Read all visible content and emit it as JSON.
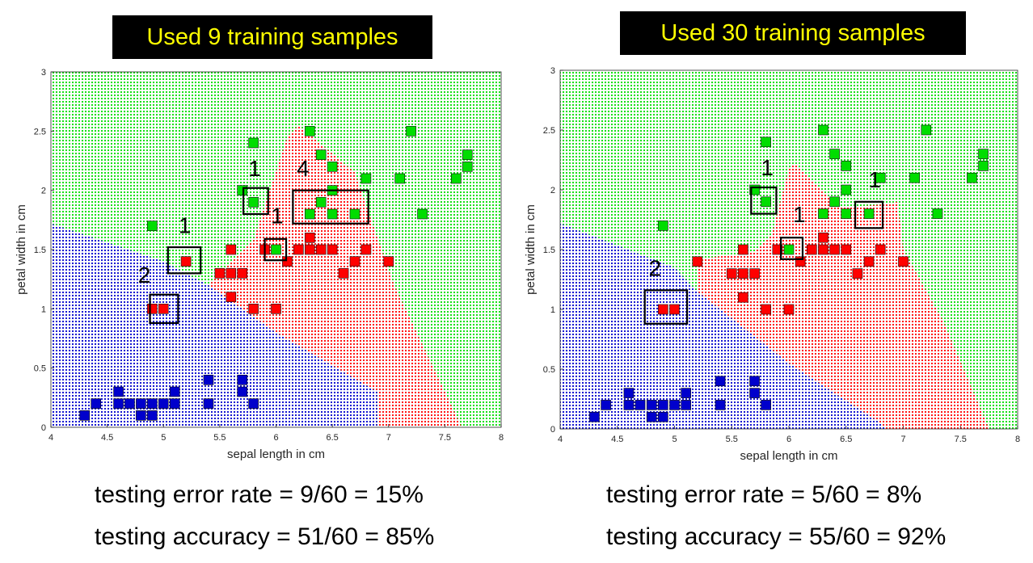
{
  "colors": {
    "setosa": "#0000cc",
    "versicolor": "#ff0000",
    "virginica": "#00dd00",
    "title_bg": "#000000",
    "title_text": "#ffff00"
  },
  "chart_data": [
    {
      "type": "scatter",
      "title": "Used 9 training samples",
      "xlabel": "sepal length in cm",
      "ylabel": "petal width in cm",
      "xlim": [
        4,
        8
      ],
      "ylim": [
        0,
        3
      ],
      "xticks": [
        "4",
        "4.5",
        "5",
        "5.5",
        "6",
        "6.5",
        "7",
        "7.5",
        "8"
      ],
      "yticks": [
        "0",
        "0.5",
        "1",
        "1.5",
        "2",
        "2.5",
        "3"
      ],
      "background": "dotted decision regions",
      "regions": {
        "setosa": [
          [
            4,
            1.72
          ],
          [
            5.0,
            1.4
          ],
          [
            5.4,
            1.2
          ],
          [
            6.0,
            0.8
          ],
          [
            6.9,
            0.3
          ],
          [
            6.9,
            0
          ],
          [
            4,
            0
          ]
        ],
        "versicolor": [
          [
            5.4,
            1.2
          ],
          [
            5.8,
            1.58
          ],
          [
            6.1,
            2.45
          ],
          [
            6.2,
            2.55
          ],
          [
            6.7,
            2.15
          ],
          [
            6.9,
            1.6
          ],
          [
            7.05,
            1.2
          ],
          [
            7.3,
            0.7
          ],
          [
            7.55,
            0.2
          ],
          [
            7.65,
            0
          ],
          [
            6.9,
            0
          ],
          [
            6.9,
            0.3
          ],
          [
            6.0,
            0.8
          ]
        ],
        "virginica": "remaining area"
      },
      "series": [
        {
          "name": "setosa",
          "color": "#0000cc",
          "points": [
            [
              4.3,
              0.1
            ],
            [
              4.4,
              0.2
            ],
            [
              4.6,
              0.2
            ],
            [
              4.6,
              0.3
            ],
            [
              4.7,
              0.2
            ],
            [
              4.8,
              0.2
            ],
            [
              4.8,
              0.1
            ],
            [
              4.9,
              0.2
            ],
            [
              4.9,
              0.1
            ],
            [
              5.0,
              0.2
            ],
            [
              5.1,
              0.2
            ],
            [
              5.1,
              0.3
            ],
            [
              5.4,
              0.2
            ],
            [
              5.4,
              0.4
            ],
            [
              5.7,
              0.4
            ],
            [
              5.7,
              0.3
            ],
            [
              5.8,
              0.2
            ]
          ]
        },
        {
          "name": "versicolor",
          "color": "#ff0000",
          "points": [
            [
              4.9,
              1.0
            ],
            [
              5.0,
              1.0
            ],
            [
              5.2,
              1.4
            ],
            [
              5.5,
              1.3
            ],
            [
              5.6,
              1.3
            ],
            [
              5.7,
              1.3
            ],
            [
              5.6,
              1.1
            ],
            [
              5.6,
              1.5
            ],
            [
              5.8,
              1.0
            ],
            [
              5.9,
              1.5
            ],
            [
              6.0,
              1.0
            ],
            [
              6.1,
              1.4
            ],
            [
              6.2,
              1.5
            ],
            [
              6.3,
              1.6
            ],
            [
              6.3,
              1.5
            ],
            [
              6.4,
              1.5
            ],
            [
              6.5,
              1.5
            ],
            [
              6.6,
              1.3
            ],
            [
              6.7,
              1.4
            ],
            [
              6.8,
              1.5
            ],
            [
              7.0,
              1.4
            ]
          ]
        },
        {
          "name": "virginica",
          "color": "#00dd00",
          "points": [
            [
              4.9,
              1.7
            ],
            [
              5.7,
              2.0
            ],
            [
              5.8,
              2.4
            ],
            [
              5.8,
              1.9
            ],
            [
              6.0,
              1.5
            ],
            [
              6.3,
              2.5
            ],
            [
              6.3,
              1.8
            ],
            [
              6.4,
              2.3
            ],
            [
              6.4,
              1.9
            ],
            [
              6.5,
              2.2
            ],
            [
              6.5,
              2.0
            ],
            [
              6.5,
              1.8
            ],
            [
              6.7,
              1.8
            ],
            [
              6.8,
              2.1
            ],
            [
              7.1,
              2.1
            ],
            [
              7.2,
              2.5
            ],
            [
              7.3,
              1.8
            ],
            [
              7.6,
              2.1
            ],
            [
              7.7,
              2.3
            ],
            [
              7.7,
              2.2
            ]
          ]
        }
      ],
      "annotations": [
        {
          "text": "2",
          "box": [
            4.88,
            0.88,
            5.13,
            1.12
          ],
          "text_at": [
            4.83,
            1.22
          ]
        },
        {
          "text": "1",
          "box": [
            5.04,
            1.3,
            5.33,
            1.52
          ],
          "text_at": [
            5.19,
            1.64
          ]
        },
        {
          "text": "1",
          "box": [
            5.71,
            1.8,
            5.93,
            2.02
          ],
          "text_at": [
            5.81,
            2.12
          ]
        },
        {
          "text": "1",
          "box": [
            5.9,
            1.41,
            6.09,
            1.59
          ],
          "text_at": [
            6.01,
            1.72
          ]
        },
        {
          "text": "4",
          "box": [
            6.15,
            1.72,
            6.82,
            2.0
          ],
          "text_at": [
            6.24,
            2.12
          ]
        }
      ]
    },
    {
      "type": "scatter",
      "title": "Used 30 training samples",
      "xlabel": "sepal length in cm",
      "ylabel": "petal width in cm",
      "xlim": [
        4,
        8
      ],
      "ylim": [
        0,
        3
      ],
      "xticks": [
        "4",
        "4.5",
        "5",
        "5.5",
        "6",
        "6.5",
        "7",
        "7.5",
        "8"
      ],
      "yticks": [
        "0",
        "0.5",
        "1",
        "1.5",
        "2",
        "2.5",
        "3"
      ],
      "background": "dotted decision regions",
      "regions": {
        "setosa": [
          [
            4,
            1.72
          ],
          [
            5.0,
            1.35
          ],
          [
            5.2,
            1.15
          ],
          [
            6.0,
            0.55
          ],
          [
            6.8,
            0.05
          ],
          [
            6.85,
            0
          ],
          [
            4,
            0
          ]
        ],
        "versicolor": [
          [
            5.2,
            1.15
          ],
          [
            5.2,
            1.42
          ],
          [
            5.7,
            1.48
          ],
          [
            5.85,
            1.62
          ],
          [
            6.0,
            2.18
          ],
          [
            6.05,
            2.22
          ],
          [
            6.45,
            1.85
          ],
          [
            6.85,
            1.88
          ],
          [
            6.95,
            1.9
          ],
          [
            7.0,
            1.5
          ],
          [
            7.35,
            0.9
          ],
          [
            7.75,
            0
          ],
          [
            6.85,
            0
          ],
          [
            6.8,
            0.05
          ],
          [
            6.0,
            0.55
          ]
        ],
        "virginica": "remaining area"
      },
      "series": [
        {
          "name": "setosa",
          "color": "#0000cc",
          "points": [
            [
              4.3,
              0.1
            ],
            [
              4.4,
              0.2
            ],
            [
              4.6,
              0.2
            ],
            [
              4.6,
              0.3
            ],
            [
              4.7,
              0.2
            ],
            [
              4.8,
              0.2
            ],
            [
              4.8,
              0.1
            ],
            [
              4.9,
              0.2
            ],
            [
              4.9,
              0.1
            ],
            [
              5.0,
              0.2
            ],
            [
              5.1,
              0.2
            ],
            [
              5.1,
              0.3
            ],
            [
              5.4,
              0.2
            ],
            [
              5.4,
              0.4
            ],
            [
              5.7,
              0.4
            ],
            [
              5.7,
              0.3
            ],
            [
              5.8,
              0.2
            ]
          ]
        },
        {
          "name": "versicolor",
          "color": "#ff0000",
          "points": [
            [
              4.9,
              1.0
            ],
            [
              5.0,
              1.0
            ],
            [
              5.2,
              1.4
            ],
            [
              5.5,
              1.3
            ],
            [
              5.6,
              1.3
            ],
            [
              5.7,
              1.3
            ],
            [
              5.6,
              1.1
            ],
            [
              5.6,
              1.5
            ],
            [
              5.8,
              1.0
            ],
            [
              5.9,
              1.5
            ],
            [
              6.0,
              1.0
            ],
            [
              6.1,
              1.4
            ],
            [
              6.2,
              1.5
            ],
            [
              6.3,
              1.6
            ],
            [
              6.3,
              1.5
            ],
            [
              6.4,
              1.5
            ],
            [
              6.5,
              1.5
            ],
            [
              6.6,
              1.3
            ],
            [
              6.7,
              1.4
            ],
            [
              6.8,
              1.5
            ],
            [
              7.0,
              1.4
            ]
          ]
        },
        {
          "name": "virginica",
          "color": "#00dd00",
          "points": [
            [
              4.9,
              1.7
            ],
            [
              5.7,
              2.0
            ],
            [
              5.8,
              2.4
            ],
            [
              5.8,
              1.9
            ],
            [
              6.0,
              1.5
            ],
            [
              6.3,
              2.5
            ],
            [
              6.3,
              1.8
            ],
            [
              6.4,
              2.3
            ],
            [
              6.4,
              1.9
            ],
            [
              6.5,
              2.2
            ],
            [
              6.5,
              2.0
            ],
            [
              6.5,
              1.8
            ],
            [
              6.7,
              1.8
            ],
            [
              6.8,
              2.1
            ],
            [
              7.1,
              2.1
            ],
            [
              7.2,
              2.5
            ],
            [
              7.3,
              1.8
            ],
            [
              7.6,
              2.1
            ],
            [
              7.7,
              2.3
            ],
            [
              7.7,
              2.2
            ]
          ]
        }
      ],
      "annotations": [
        {
          "text": "2",
          "box": [
            4.74,
            0.88,
            5.11,
            1.16
          ],
          "text_at": [
            4.83,
            1.28
          ]
        },
        {
          "text": "1",
          "box": [
            5.67,
            1.8,
            5.89,
            2.02
          ],
          "text_at": [
            5.81,
            2.12
          ]
        },
        {
          "text": "1",
          "box": [
            5.93,
            1.42,
            6.12,
            1.6
          ],
          "text_at": [
            6.09,
            1.73
          ]
        },
        {
          "text": "1",
          "box": [
            6.58,
            1.68,
            6.82,
            1.9
          ],
          "text_at": [
            6.75,
            2.02
          ]
        }
      ]
    }
  ],
  "metrics": [
    {
      "error": "testing error rate = 9/60 = 15%",
      "accuracy": "testing accuracy = 51/60 = 85%"
    },
    {
      "error": "testing error rate = 5/60 = 8%",
      "accuracy": "testing accuracy = 55/60 = 92%"
    }
  ]
}
